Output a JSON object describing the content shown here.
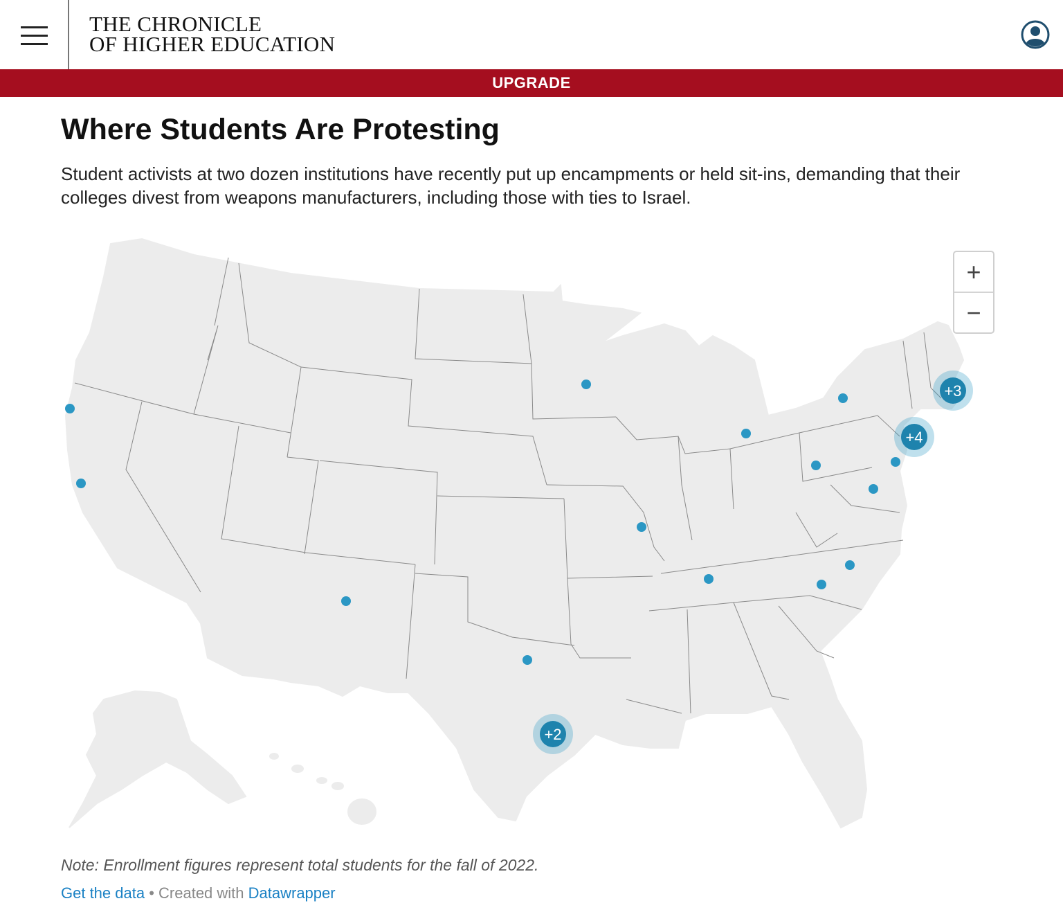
{
  "header": {
    "logo_line1": "THE CHRONICLE",
    "logo_line2": "OF HIGHER EDUCATION",
    "menu_icon": "hamburger-menu-icon",
    "account_icon": "user-account-icon"
  },
  "banner": {
    "upgrade_label": "UPGRADE",
    "color": "#a50e1f"
  },
  "article": {
    "title": "Where Students Are Protesting",
    "description": "Student activists at two dozen institutions have recently put up encampments or held sit-ins, demanding that their colleges divest from weapons manufacturers, including those with ties to Israel."
  },
  "map": {
    "region": "United States",
    "marker_color": "#2b97c4",
    "zoom_in_label": "+",
    "zoom_out_label": "−",
    "clusters": [
      {
        "label": "+3"
      },
      {
        "label": "+4"
      },
      {
        "label": "+2"
      }
    ]
  },
  "footer": {
    "note": "Note: Enrollment figures represent total students for the fall of 2022.",
    "get_data_label": "Get the data",
    "separator": " • Created with ",
    "datawrapper_label": "Datawrapper",
    "link_color": "#1a81c4"
  }
}
